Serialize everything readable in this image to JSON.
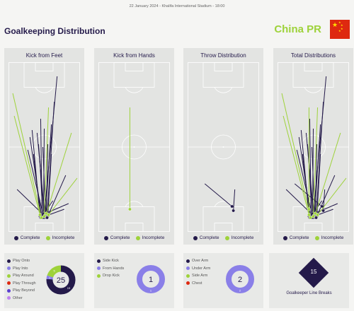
{
  "header": {
    "match_info": "22 January 2024 - Khalifa International Stadium - 18:00",
    "title": "Goalkeeping Distribution",
    "team": "China PR"
  },
  "colors": {
    "complete": "#241a4a",
    "incomplete": "#9ed23a",
    "accent_purple": "#8a7fe8",
    "flag_red": "#de2910",
    "flag_yellow": "#ffde00"
  },
  "legend": {
    "complete": "Complete",
    "incomplete": "Incomplete"
  },
  "chart_data": [
    {
      "type": "scatter",
      "title": "Kick from Feet",
      "passes": [
        {
          "start": [
            50,
            12
          ],
          "end": [
            68,
            110
          ],
          "complete": true
        },
        {
          "start": [
            54,
            11
          ],
          "end": [
            64,
            92
          ],
          "complete": true
        },
        {
          "start": [
            47,
            10
          ],
          "end": [
            45,
            80
          ],
          "complete": true
        },
        {
          "start": [
            44,
            11
          ],
          "end": [
            33,
            72
          ],
          "complete": true
        },
        {
          "start": [
            52,
            13
          ],
          "end": [
            60,
            76
          ],
          "complete": true
        },
        {
          "start": [
            49,
            11
          ],
          "end": [
            50,
            73
          ],
          "complete": true
        },
        {
          "start": [
            46,
            12
          ],
          "end": [
            30,
            67
          ],
          "complete": true
        },
        {
          "start": [
            51,
            10
          ],
          "end": [
            40,
            70
          ],
          "complete": true
        },
        {
          "start": [
            53,
            12
          ],
          "end": [
            55,
            62
          ],
          "complete": true
        },
        {
          "start": [
            48,
            13
          ],
          "end": [
            27,
            58
          ],
          "complete": true
        },
        {
          "start": [
            50,
            10
          ],
          "end": [
            42,
            62
          ],
          "complete": true
        },
        {
          "start": [
            55,
            11
          ],
          "end": [
            60,
            55
          ],
          "complete": true
        },
        {
          "start": [
            45,
            10
          ],
          "end": [
            35,
            55
          ],
          "complete": true
        },
        {
          "start": [
            52,
            12
          ],
          "end": [
            48,
            60
          ],
          "complete": true
        },
        {
          "start": [
            49,
            12
          ],
          "end": [
            12,
            30
          ],
          "complete": true
        },
        {
          "start": [
            51,
            11
          ],
          "end": [
            78,
            16
          ],
          "complete": true
        },
        {
          "start": [
            47,
            12
          ],
          "end": [
            84,
            20
          ],
          "complete": true
        },
        {
          "start": [
            50,
            13
          ],
          "end": [
            62,
            22
          ],
          "complete": true
        },
        {
          "start": [
            54,
            10
          ],
          "end": [
            80,
            40
          ],
          "complete": true
        },
        {
          "start": [
            48,
            10
          ],
          "end": [
            44,
            50
          ],
          "complete": true
        },
        {
          "start": [
            50,
            11
          ],
          "end": [
            56,
            88
          ],
          "complete": false
        },
        {
          "start": [
            46,
            10
          ],
          "end": [
            6,
            98
          ],
          "complete": false
        },
        {
          "start": [
            53,
            13
          ],
          "end": [
            88,
            70
          ],
          "complete": false
        },
        {
          "start": [
            44,
            12
          ],
          "end": [
            8,
            82
          ],
          "complete": false
        },
        {
          "start": [
            56,
            12
          ],
          "end": [
            96,
            38
          ],
          "complete": false
        }
      ]
    },
    {
      "type": "scatter",
      "title": "Kick from Hands",
      "passes": [
        {
          "start": [
            44,
            16
          ],
          "end": [
            44,
            88
          ],
          "complete": false
        }
      ]
    },
    {
      "type": "scatter",
      "title": "Throw Distribution",
      "passes": [
        {
          "start": [
            62,
            18
          ],
          "end": [
            24,
            34
          ],
          "complete": true
        },
        {
          "start": [
            64,
            15
          ],
          "end": [
            66,
            30
          ],
          "complete": true
        }
      ]
    },
    {
      "type": "scatter",
      "title": "Total Distributions",
      "passes": [
        {
          "start": [
            50,
            12
          ],
          "end": [
            68,
            110
          ],
          "complete": true
        },
        {
          "start": [
            54,
            11
          ],
          "end": [
            64,
            92
          ],
          "complete": true
        },
        {
          "start": [
            47,
            10
          ],
          "end": [
            45,
            80
          ],
          "complete": true
        },
        {
          "start": [
            44,
            11
          ],
          "end": [
            33,
            72
          ],
          "complete": true
        },
        {
          "start": [
            52,
            13
          ],
          "end": [
            60,
            76
          ],
          "complete": true
        },
        {
          "start": [
            49,
            11
          ],
          "end": [
            50,
            73
          ],
          "complete": true
        },
        {
          "start": [
            46,
            12
          ],
          "end": [
            30,
            67
          ],
          "complete": true
        },
        {
          "start": [
            51,
            10
          ],
          "end": [
            40,
            70
          ],
          "complete": true
        },
        {
          "start": [
            53,
            12
          ],
          "end": [
            55,
            62
          ],
          "complete": true
        },
        {
          "start": [
            48,
            13
          ],
          "end": [
            27,
            58
          ],
          "complete": true
        },
        {
          "start": [
            50,
            10
          ],
          "end": [
            42,
            62
          ],
          "complete": true
        },
        {
          "start": [
            55,
            11
          ],
          "end": [
            60,
            55
          ],
          "complete": true
        },
        {
          "start": [
            45,
            10
          ],
          "end": [
            35,
            55
          ],
          "complete": true
        },
        {
          "start": [
            52,
            12
          ],
          "end": [
            48,
            60
          ],
          "complete": true
        },
        {
          "start": [
            49,
            12
          ],
          "end": [
            12,
            30
          ],
          "complete": true
        },
        {
          "start": [
            51,
            11
          ],
          "end": [
            78,
            16
          ],
          "complete": true
        },
        {
          "start": [
            47,
            12
          ],
          "end": [
            84,
            20
          ],
          "complete": true
        },
        {
          "start": [
            50,
            13
          ],
          "end": [
            62,
            22
          ],
          "complete": true
        },
        {
          "start": [
            54,
            10
          ],
          "end": [
            80,
            40
          ],
          "complete": true
        },
        {
          "start": [
            48,
            10
          ],
          "end": [
            44,
            50
          ],
          "complete": true
        },
        {
          "start": [
            62,
            18
          ],
          "end": [
            24,
            34
          ],
          "complete": true
        },
        {
          "start": [
            64,
            15
          ],
          "end": [
            66,
            30
          ],
          "complete": true
        },
        {
          "start": [
            50,
            11
          ],
          "end": [
            56,
            88
          ],
          "complete": false
        },
        {
          "start": [
            46,
            10
          ],
          "end": [
            6,
            98
          ],
          "complete": false
        },
        {
          "start": [
            53,
            13
          ],
          "end": [
            88,
            70
          ],
          "complete": false
        },
        {
          "start": [
            44,
            12
          ],
          "end": [
            8,
            82
          ],
          "complete": false
        },
        {
          "start": [
            56,
            12
          ],
          "end": [
            96,
            38
          ],
          "complete": false
        },
        {
          "start": [
            44,
            16
          ],
          "end": [
            44,
            88
          ],
          "complete": false
        }
      ]
    },
    {
      "type": "pie",
      "title": "",
      "total": 25,
      "slices": [
        {
          "label": "Play Onto",
          "value": 19,
          "color": "#241a4a"
        },
        {
          "label": "Play Into",
          "value": 1,
          "color": "#8a7fe8"
        },
        {
          "label": "Play Around",
          "value": 5,
          "color": "#9ed23a"
        },
        {
          "label": "Play Through",
          "value": 0,
          "color": "#de2910"
        },
        {
          "label": "Play Beyond",
          "value": 0,
          "color": "#5a3fd0"
        },
        {
          "label": "Other",
          "value": 0,
          "color": "#c084f0"
        }
      ]
    },
    {
      "type": "pie",
      "title": "",
      "total": 1,
      "slices": [
        {
          "label": "Side Kick",
          "value": 0,
          "color": "#241a4a"
        },
        {
          "label": "From Hands",
          "value": 1,
          "color": "#8a7fe8"
        },
        {
          "label": "Drop Kick",
          "value": 0,
          "color": "#9ed23a"
        }
      ]
    },
    {
      "type": "pie",
      "title": "",
      "total": 2,
      "slices": [
        {
          "label": "Over Arm",
          "value": 0,
          "color": "#241a4a"
        },
        {
          "label": "Under Arm",
          "value": 2,
          "color": "#8a7fe8"
        },
        {
          "label": "Side Arm",
          "value": 0,
          "color": "#9ed23a"
        },
        {
          "label": "Chest",
          "value": 0,
          "color": "#de2910"
        }
      ]
    }
  ],
  "line_breaks": {
    "value": 15,
    "label": "Goalkeeper Line Breaks"
  }
}
